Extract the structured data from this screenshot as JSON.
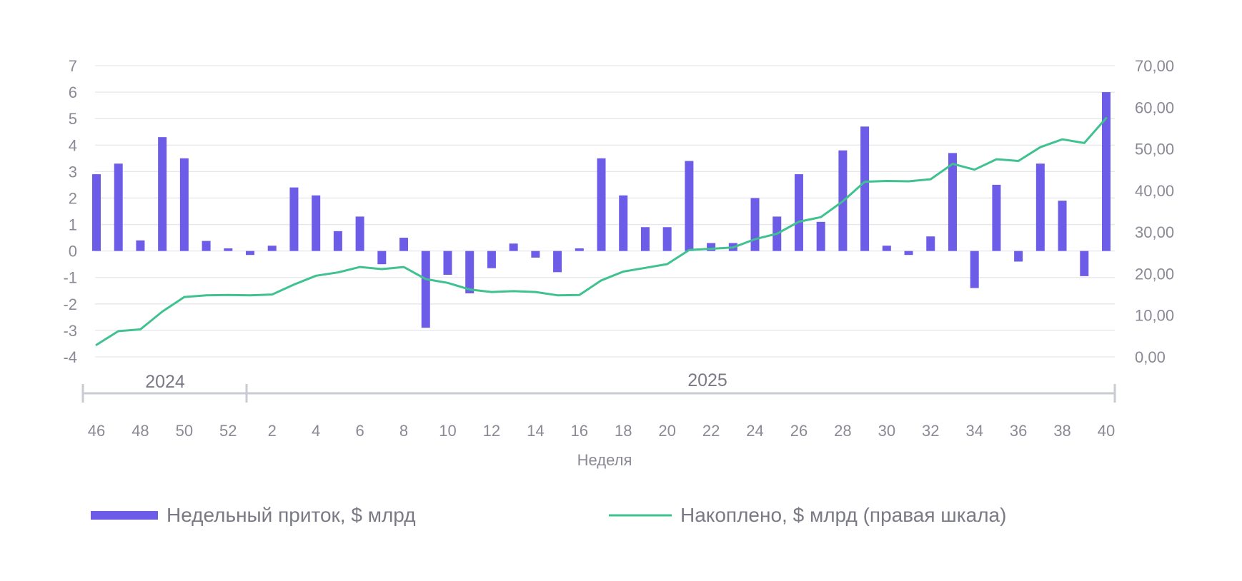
{
  "chart_data": {
    "type": "bar+line",
    "xlabel": "Неделя",
    "year_labels": [
      "2024",
      "2025"
    ],
    "x_tick_labels": [
      "46",
      "48",
      "50",
      "52",
      "2",
      "4",
      "6",
      "8",
      "10",
      "12",
      "14",
      "16",
      "18",
      "20",
      "22",
      "24",
      "26",
      "28",
      "30",
      "32",
      "34",
      "36",
      "38",
      "40"
    ],
    "weeks": [
      "46",
      "47",
      "48",
      "49",
      "50",
      "51",
      "52",
      "1",
      "2",
      "3",
      "4",
      "5",
      "6",
      "7",
      "8",
      "9",
      "10",
      "11",
      "12",
      "13",
      "14",
      "15",
      "16",
      "17",
      "18",
      "19",
      "20",
      "21",
      "22",
      "23",
      "24",
      "25",
      "26",
      "27",
      "28",
      "29",
      "30",
      "31",
      "32",
      "33",
      "34",
      "35",
      "36",
      "37",
      "38",
      "39",
      "40"
    ],
    "left_axis": {
      "min": -4,
      "max": 7,
      "ticks": [
        "7",
        "6",
        "5",
        "4",
        "3",
        "2",
        "1",
        "0",
        "-1",
        "-2",
        "-3",
        "-4"
      ]
    },
    "right_axis": {
      "min": 0,
      "max": 70,
      "ticks": [
        "70,00",
        "60,00",
        "50,00",
        "40,00",
        "30,00",
        "20,00",
        "10,00",
        "0,00"
      ]
    },
    "series": [
      {
        "name": "Недельный приток, $ млрд",
        "kind": "bar",
        "axis": "left",
        "color": "#6C5CE7",
        "values": [
          2.9,
          3.3,
          0.4,
          4.3,
          3.5,
          0.38,
          0.1,
          -0.15,
          0.2,
          2.4,
          2.1,
          0.75,
          1.3,
          -0.5,
          0.5,
          -2.9,
          -0.9,
          -1.6,
          -0.65,
          0.28,
          -0.25,
          -0.8,
          0.1,
          3.5,
          2.1,
          0.9,
          0.9,
          3.4,
          0.3,
          0.3,
          2.0,
          1.3,
          2.9,
          1.1,
          3.8,
          4.7,
          0.2,
          -0.15,
          0.55,
          3.7,
          -1.4,
          2.5,
          -0.4,
          3.3,
          1.9,
          -0.95,
          6.0
        ]
      },
      {
        "name": "Накоплено, $ млрд (правая шкала)",
        "kind": "line",
        "axis": "right",
        "color": "#3FC190",
        "values": [
          2.9,
          6.2,
          6.6,
          10.9,
          14.4,
          14.8,
          14.9,
          14.8,
          15.0,
          17.4,
          19.5,
          20.3,
          21.6,
          21.1,
          21.6,
          18.7,
          17.8,
          16.2,
          15.6,
          15.8,
          15.6,
          14.8,
          14.9,
          18.4,
          20.5,
          21.4,
          22.3,
          25.7,
          26.0,
          26.3,
          28.3,
          29.6,
          32.5,
          33.6,
          37.4,
          42.1,
          42.3,
          42.2,
          42.7,
          46.4,
          45.0,
          47.5,
          47.1,
          50.4,
          52.3,
          51.4,
          57.4
        ]
      }
    ],
    "legend": [
      {
        "label": "Недельный приток, $ млрд",
        "color": "#6C5CE7",
        "kind": "bar"
      },
      {
        "label": "Накоплено, $ млрд (правая шкала)",
        "color": "#3FC190",
        "kind": "line"
      }
    ]
  }
}
